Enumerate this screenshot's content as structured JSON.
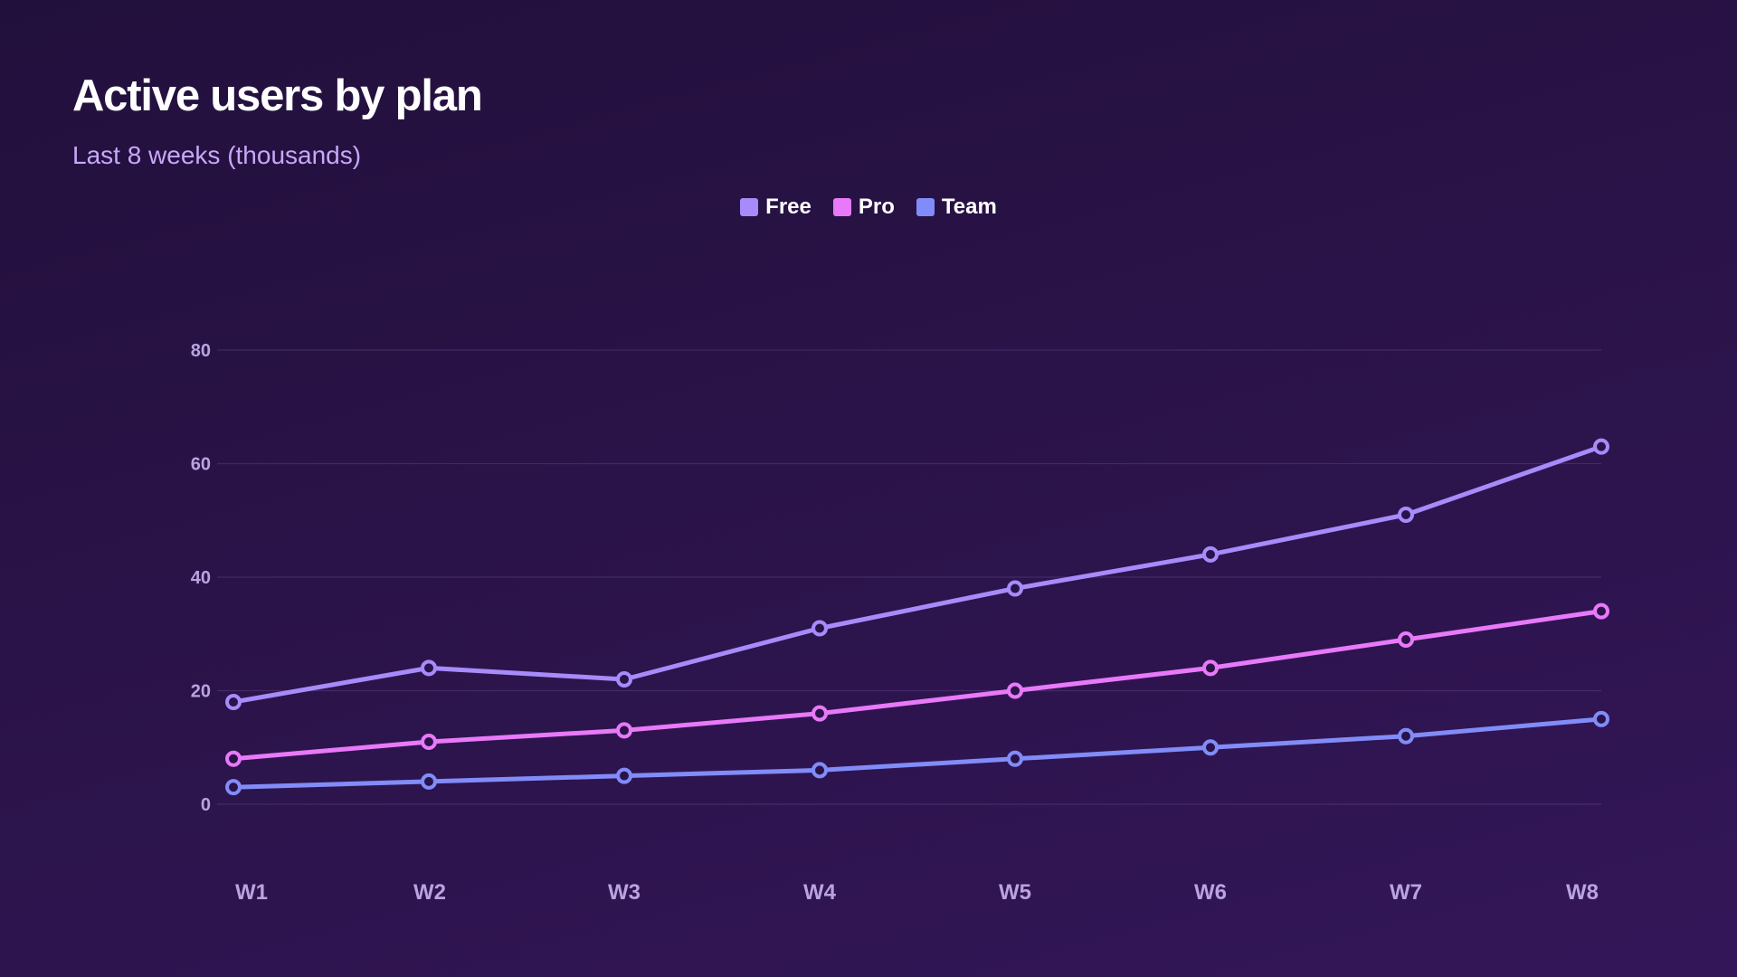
{
  "chart_data": {
    "type": "line",
    "title": "Active users by plan",
    "subtitle": "Last 8 weeks (thousands)",
    "xlabel": "",
    "ylabel": "",
    "categories": [
      "W1",
      "W2",
      "W3",
      "W4",
      "W5",
      "W6",
      "W7",
      "W8"
    ],
    "series": [
      {
        "name": "Free",
        "color": "#a78bfa",
        "values": [
          18,
          24,
          22,
          31,
          38,
          44,
          51,
          63
        ]
      },
      {
        "name": "Pro",
        "color": "#e879f9",
        "values": [
          8,
          11,
          13,
          16,
          20,
          24,
          29,
          34
        ]
      },
      {
        "name": "Team",
        "color": "#818cf8",
        "values": [
          3,
          4,
          5,
          6,
          8,
          10,
          12,
          15
        ]
      }
    ],
    "ylim": [
      0,
      80
    ],
    "yticks": [
      0,
      20,
      40,
      60,
      80
    ],
    "grid": true,
    "legend": "top-center"
  }
}
